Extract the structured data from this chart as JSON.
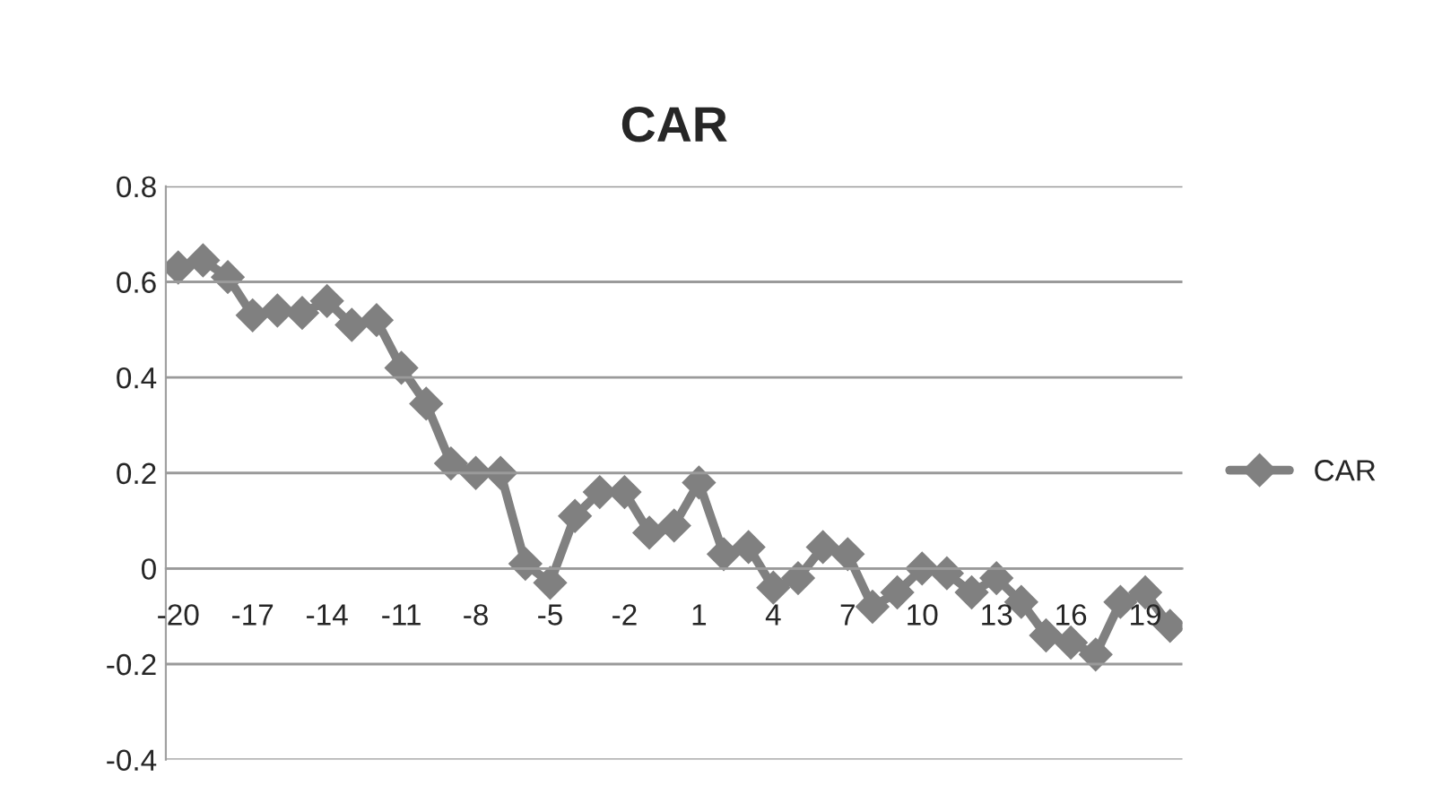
{
  "chart_data": {
    "type": "line",
    "title": "CAR",
    "categories": [
      "-20",
      null,
      null,
      "-17",
      null,
      null,
      "-14",
      null,
      null,
      "-11",
      null,
      null,
      "-8",
      null,
      null,
      "-5",
      null,
      null,
      "-2",
      null,
      null,
      "1",
      null,
      null,
      "4",
      null,
      null,
      "7",
      null,
      null,
      "10",
      null,
      null,
      "13",
      null,
      null,
      "16",
      null,
      null,
      "19",
      null
    ],
    "series": [
      {
        "name": "CAR",
        "color": "#808080",
        "values": [
          0.63,
          0.645,
          0.61,
          0.53,
          0.54,
          0.535,
          0.56,
          0.51,
          0.52,
          0.42,
          0.345,
          0.22,
          0.2,
          0.2,
          0.01,
          -0.03,
          0.11,
          0.16,
          0.16,
          0.075,
          0.09,
          0.18,
          0.03,
          0.045,
          -0.04,
          -0.02,
          0.045,
          0.03,
          -0.08,
          -0.05,
          0.0,
          -0.01,
          -0.05,
          -0.02,
          -0.07,
          -0.14,
          -0.155,
          -0.18,
          -0.07,
          -0.05,
          -0.12
        ]
      }
    ],
    "ylim": [
      -0.4,
      0.8
    ],
    "yticks": [
      -0.4,
      -0.2,
      0,
      0.2,
      0.4,
      0.6,
      0.8
    ],
    "grid": "y",
    "legend": "right",
    "marker": "diamond",
    "line_style": "solid"
  }
}
